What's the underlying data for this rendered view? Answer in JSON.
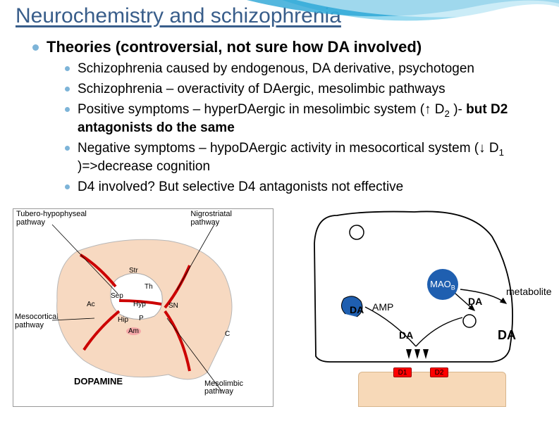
{
  "title": "Neurochemistry and schizophrenia",
  "heading": "Theories (controversial, not sure how DA involved)",
  "bullets": {
    "b1": "Schizophrenia caused by endogenous, DA derivative, psychotogen",
    "b2": "Schizophrenia – overactivity of DAergic, mesolimbic pathways",
    "b3a": "Positive symptoms – hyperDAergic in mesolimbic system (↑ D",
    "b3sub": "2",
    "b3b": " )- ",
    "b3bold": "but D2 antagonists do the same",
    "b4a": "Negative symptoms – hypoDAergic activity in mesocortical system (↓ D",
    "b4sub": "1",
    "b4b": " )=>decrease cognition",
    "b5": "D4 involved? But selective D4 antagonists not effective"
  },
  "brain": {
    "tubero": "Tubero-hypophyseal\npathway",
    "nigro": "Nigrostriatal\npathway",
    "mesocort": "Mesocortical\npathway",
    "mesolimb": "Mesolimbic\npathway",
    "dopamine": "DOPAMINE",
    "nodes": {
      "str": "Str",
      "th": "Th",
      "sep": "Sep",
      "hyp": "Hyp",
      "ac": "Ac",
      "hip": "Hip",
      "am": "Am",
      "sn": "SN",
      "p": "P",
      "c": "C"
    }
  },
  "synapse": {
    "mao": "MAO",
    "maosub": "B",
    "metabolite": "metabolite",
    "amp": "AMP",
    "da1": "DA",
    "da2": "DA",
    "da3": "DA",
    "da4": "DA",
    "d1": "D1",
    "d2": "D2"
  },
  "colors": {
    "title": "#385d8a",
    "bullet": "#7db4d8",
    "wave1": "#6bc9e8",
    "wave2": "#29a5d6",
    "brain_fill": "#f5c9a8",
    "brain_path": "#cc0000",
    "receptor": "#ff0000",
    "mao": "#1f5fb0",
    "terminal": "#f7d9b8"
  }
}
